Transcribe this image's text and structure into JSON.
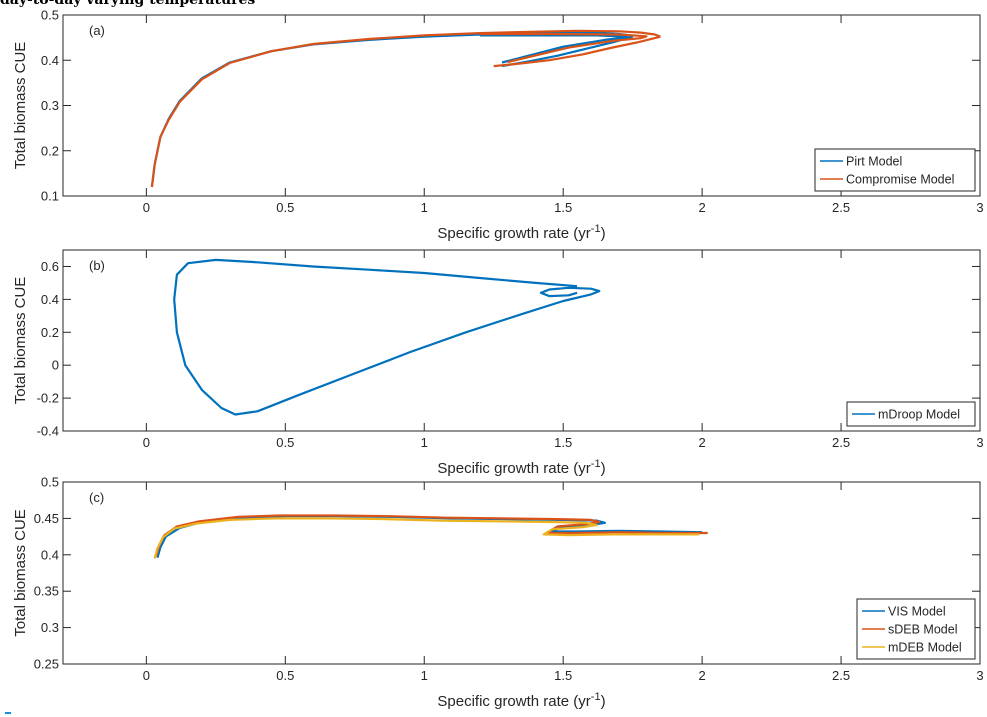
{
  "figure": {
    "title_fragment": "day-to-day varying temperatures"
  },
  "chart_data": [
    {
      "type": "line",
      "panel_label": "(a)",
      "xlabel": "Specific growth rate",
      "xlabel_unit": "(yr",
      "xlabel_exp": "-1",
      "xlabel_close": ")",
      "ylabel": "Total biomass CUE",
      "xlim": [
        -0.3,
        3
      ],
      "ylim": [
        0.1,
        0.5
      ],
      "xticks": [
        0,
        0.5,
        1,
        1.5,
        2,
        2.5,
        3
      ],
      "xticklabels": [
        "0",
        "0.5",
        "1",
        "1.5",
        "2",
        "2.5",
        "3"
      ],
      "yticks": [
        0.1,
        0.2,
        0.3,
        0.4,
        0.5
      ],
      "yticklabels": [
        "0.1",
        "0.2",
        "0.3",
        "0.4",
        "0.5"
      ],
      "legend_position": "bottom-right",
      "series": [
        {
          "name": "Pirt Model",
          "color": "#0072BD",
          "paths": [
            {
              "x": [
                0.02,
                0.03,
                0.05,
                0.08,
                0.12,
                0.2,
                0.3,
                0.45,
                0.6,
                0.8,
                1.0,
                1.2,
                1.4,
                1.55,
                1.65,
                1.7,
                1.74,
                1.75
              ],
              "y": [
                0.12,
                0.17,
                0.23,
                0.27,
                0.31,
                0.36,
                0.395,
                0.42,
                0.435,
                0.445,
                0.452,
                0.457,
                0.46,
                0.461,
                0.46,
                0.458,
                0.455,
                0.452
              ]
            },
            {
              "x": [
                1.75,
                1.68,
                1.58,
                1.48,
                1.38,
                1.28
              ],
              "y": [
                0.452,
                0.44,
                0.425,
                0.41,
                0.398,
                0.387
              ]
            },
            {
              "x": [
                1.28,
                1.5,
                1.65,
                1.72,
                1.73,
                1.62,
                1.4,
                1.2
              ],
              "y": [
                0.395,
                0.43,
                0.445,
                0.45,
                0.452,
                0.455,
                0.455,
                0.455
              ]
            }
          ]
        },
        {
          "name": "Compromise Model",
          "color": "#D95319",
          "paths": [
            {
              "x": [
                0.02,
                0.03,
                0.05,
                0.08,
                0.12,
                0.2,
                0.3,
                0.45,
                0.6,
                0.8,
                1.0,
                1.2,
                1.4,
                1.55,
                1.7,
                1.78,
                1.83,
                1.85
              ],
              "y": [
                0.12,
                0.17,
                0.23,
                0.268,
                0.308,
                0.358,
                0.394,
                0.42,
                0.436,
                0.447,
                0.455,
                0.46,
                0.463,
                0.465,
                0.464,
                0.461,
                0.457,
                0.452
              ]
            },
            {
              "x": [
                1.85,
                1.77,
                1.67,
                1.57,
                1.45,
                1.35,
                1.25
              ],
              "y": [
                0.452,
                0.44,
                0.427,
                0.413,
                0.4,
                0.393,
                0.387
              ]
            },
            {
              "x": [
                1.3,
                1.52,
                1.68,
                1.78,
                1.8,
                1.7,
                1.45,
                1.2
              ],
              "y": [
                0.396,
                0.428,
                0.443,
                0.449,
                0.453,
                0.457,
                0.458,
                0.458
              ]
            }
          ]
        }
      ]
    },
    {
      "type": "line",
      "panel_label": "(b)",
      "xlabel": "Specific growth rate",
      "xlabel_unit": "(yr",
      "xlabel_exp": "-1",
      "xlabel_close": ")",
      "ylabel": "Total biomass CUE",
      "xlim": [
        -0.3,
        3
      ],
      "ylim": [
        -0.4,
        0.7
      ],
      "xticks": [
        0,
        0.5,
        1,
        1.5,
        2,
        2.5,
        3
      ],
      "xticklabels": [
        "0",
        "0.5",
        "1",
        "1.5",
        "2",
        "2.5",
        "3"
      ],
      "yticks": [
        -0.4,
        -0.2,
        0,
        0.2,
        0.4,
        0.6
      ],
      "yticklabels": [
        "-0.4",
        "-0.2",
        "0",
        "0.2",
        "0.4",
        "0.6"
      ],
      "legend_position": "bottom-right",
      "series": [
        {
          "name": "mDroop Model",
          "color": "#0072BD",
          "paths": [
            {
              "x": [
                1.55,
                1.4,
                1.2,
                1.0,
                0.8,
                0.6,
                0.4,
                0.25,
                0.15,
                0.11,
                0.1,
                0.11,
                0.14,
                0.2,
                0.27,
                0.32,
                0.4,
                0.55,
                0.75,
                0.95,
                1.15,
                1.35,
                1.5,
                1.6,
                1.63,
                1.6,
                1.52,
                1.45,
                1.42,
                1.45,
                1.52,
                1.55
              ],
              "y": [
                0.48,
                0.5,
                0.53,
                0.56,
                0.58,
                0.6,
                0.625,
                0.64,
                0.62,
                0.55,
                0.4,
                0.2,
                0.0,
                -0.15,
                -0.26,
                -0.3,
                -0.28,
                -0.18,
                -0.05,
                0.08,
                0.2,
                0.31,
                0.39,
                0.43,
                0.45,
                0.465,
                0.47,
                0.46,
                0.44,
                0.42,
                0.425,
                0.44
              ]
            }
          ]
        }
      ]
    },
    {
      "type": "line",
      "panel_label": "(c)",
      "xlabel": "Specific growth rate",
      "xlabel_unit": "(yr",
      "xlabel_exp": "-1",
      "xlabel_close": ")",
      "ylabel": "Total biomass CUE",
      "xlim": [
        -0.3,
        3
      ],
      "ylim": [
        0.25,
        0.5
      ],
      "xticks": [
        0,
        0.5,
        1,
        1.5,
        2,
        2.5,
        3
      ],
      "xticklabels": [
        "0",
        "0.5",
        "1",
        "1.5",
        "2",
        "2.5",
        "3"
      ],
      "yticks": [
        0.25,
        0.3,
        0.35,
        0.4,
        0.45,
        0.5
      ],
      "yticklabels": [
        "0.25",
        "0.3",
        "0.35",
        "0.4",
        "0.45",
        "0.5"
      ],
      "legend_position": "bottom-right",
      "series": [
        {
          "name": "VIS Model",
          "color": "#0072BD",
          "paths": [
            {
              "x": [
                0.04,
                0.05,
                0.07,
                0.12,
                0.2,
                0.35,
                0.5,
                0.7,
                0.9,
                1.1,
                1.3,
                1.5,
                1.62,
                1.65,
                1.6,
                1.5,
                1.45,
                1.55,
                1.7,
                1.85,
                2.0
              ],
              "y": [
                0.396,
                0.41,
                0.425,
                0.437,
                0.445,
                0.451,
                0.453,
                0.453,
                0.452,
                0.45,
                0.449,
                0.448,
                0.447,
                0.444,
                0.441,
                0.438,
                0.432,
                0.432,
                0.433,
                0.432,
                0.431
              ]
            }
          ]
        },
        {
          "name": "sDEB Model",
          "color": "#D95319",
          "paths": [
            {
              "x": [
                0.035,
                0.045,
                0.065,
                0.11,
                0.19,
                0.33,
                0.48,
                0.68,
                0.88,
                1.08,
                1.28,
                1.48,
                1.6,
                1.63,
                1.58,
                1.48,
                1.44,
                1.54,
                1.7,
                1.86,
                2.02
              ],
              "y": [
                0.398,
                0.412,
                0.427,
                0.439,
                0.446,
                0.452,
                0.454,
                0.454,
                0.453,
                0.451,
                0.45,
                0.449,
                0.448,
                0.445,
                0.442,
                0.439,
                0.43,
                0.43,
                0.431,
                0.43,
                0.43
              ]
            }
          ]
        },
        {
          "name": "mDEB Model",
          "color": "#EDB120",
          "paths": [
            {
              "x": [
                0.03,
                0.04,
                0.06,
                0.1,
                0.18,
                0.3,
                0.46,
                0.66,
                0.86,
                1.06,
                1.26,
                1.46,
                1.58,
                1.62,
                1.57,
                1.46,
                1.43,
                1.52,
                1.68,
                1.84,
                1.99
              ],
              "y": [
                0.395,
                0.409,
                0.424,
                0.436,
                0.443,
                0.448,
                0.45,
                0.45,
                0.449,
                0.447,
                0.446,
                0.445,
                0.444,
                0.441,
                0.438,
                0.435,
                0.428,
                0.427,
                0.428,
                0.428,
                0.428
              ]
            }
          ]
        }
      ]
    }
  ]
}
